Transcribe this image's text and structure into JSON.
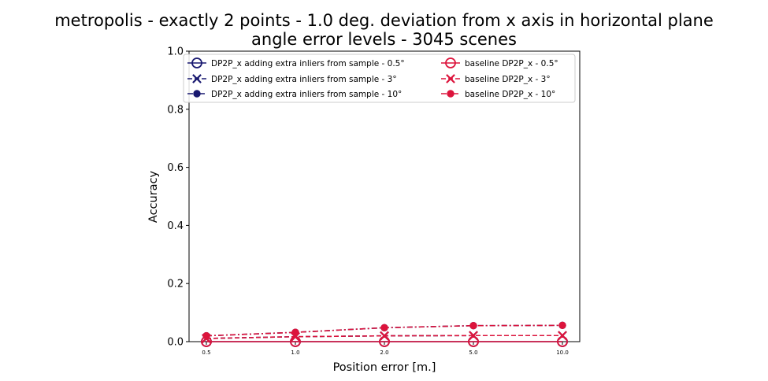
{
  "chart_data": {
    "type": "line",
    "title_lines": [
      "metropolis - exactly 2 points - 1.0 deg. deviation from x axis in horizontal plane",
      "angle error levels - 3045 scenes"
    ],
    "xlabel": "Position error [m.]",
    "ylabel": "Accuracy",
    "categories": [
      "0.5",
      "1.0",
      "2.0",
      "5.0",
      "10.0"
    ],
    "ylim": [
      0,
      1
    ],
    "yticks": [
      "0.0",
      "0.2",
      "0.4",
      "0.6",
      "0.8",
      "1.0"
    ],
    "grid": false,
    "legend_position": "top",
    "legend_columns": 2,
    "series": [
      {
        "name": "DP2P_x adding extra inliers from sample - 0.5°",
        "color": "#191970",
        "marker": "circle-open",
        "line_style": "solid",
        "values": [
          0.0,
          0.0,
          0.0,
          0.0,
          0.0
        ]
      },
      {
        "name": "DP2P_x adding extra inliers from sample - 3°",
        "color": "#191970",
        "marker": "x",
        "line_style": "dashed",
        "values": [
          0.011,
          0.017,
          0.02,
          0.021,
          0.021
        ]
      },
      {
        "name": "DP2P_x adding extra inliers from sample - 10°",
        "color": "#191970",
        "marker": "dot",
        "line_style": "dashdot",
        "values": [
          0.02,
          0.032,
          0.048,
          0.055,
          0.056
        ]
      },
      {
        "name": "baseline DP2P_x - 0.5°",
        "color": "#DC143C",
        "marker": "circle-open",
        "line_style": "solid",
        "values": [
          0.0,
          0.0,
          0.0,
          0.0,
          0.0
        ]
      },
      {
        "name": "baseline DP2P_x - 3°",
        "color": "#DC143C",
        "marker": "x",
        "line_style": "dashed",
        "values": [
          0.011,
          0.017,
          0.02,
          0.021,
          0.021
        ]
      },
      {
        "name": "baseline DP2P_x - 10°",
        "color": "#DC143C",
        "marker": "dot",
        "line_style": "dashdot",
        "values": [
          0.02,
          0.032,
          0.048,
          0.055,
          0.056
        ]
      }
    ]
  }
}
